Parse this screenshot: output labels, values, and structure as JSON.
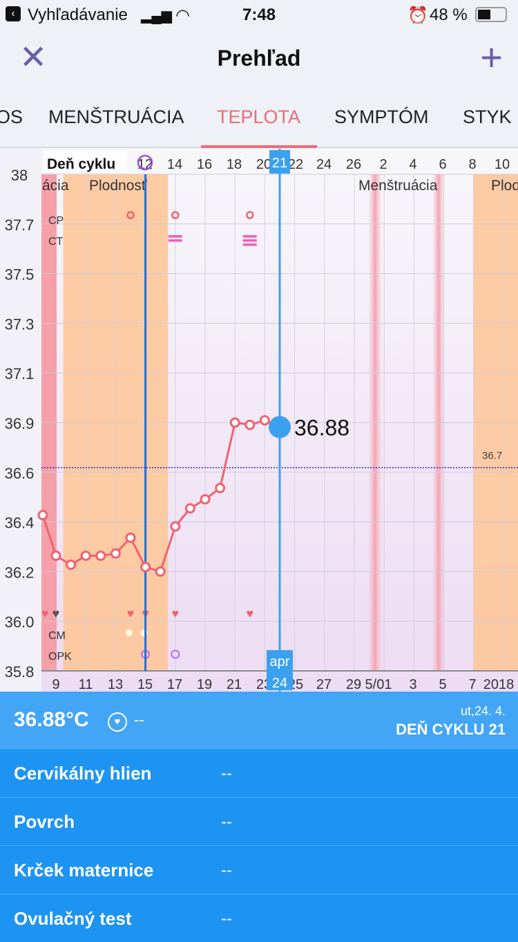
{
  "status_bar": {
    "back_app": "Vyhľadávanie",
    "time": "7:48",
    "battery": "48 %"
  },
  "nav": {
    "title": "Prehľad",
    "close_icon": "close-icon",
    "add_icon": "plus-icon"
  },
  "tabs": [
    {
      "label": "OS"
    },
    {
      "label": "MENŠTRUÁCIA"
    },
    {
      "label": "TEPLOTA",
      "active": true
    },
    {
      "label": "SYMPTÓM"
    },
    {
      "label": "STYK"
    }
  ],
  "chart_data": {
    "type": "line",
    "top_axis_label": "Deň cyklu",
    "top_ticks": [
      "12",
      "14",
      "16",
      "18",
      "20",
      "21",
      "22",
      "24",
      "26",
      "2",
      "4",
      "6",
      "8",
      "10"
    ],
    "bottom_ticks": [
      "9",
      "11",
      "13",
      "15",
      "17",
      "19",
      "21",
      "23",
      "24",
      "25",
      "27",
      "29",
      "5/01",
      "3",
      "5",
      "7",
      "2018"
    ],
    "selected_month": "apr",
    "selected_day": "24",
    "selected_cycle_day": "21",
    "y_ticks": [
      "38",
      "37.7",
      "37.5",
      "37.3",
      "37.1",
      "36.9",
      "36.6",
      "36.4",
      "36.2",
      "36.0",
      "35.8"
    ],
    "ylim": [
      35.8,
      38
    ],
    "row_labels": {
      "cp": "CP",
      "ct": "CT",
      "cm": "CM",
      "opk": "OPK"
    },
    "band_labels": {
      "menstruation_left": "ácia",
      "fertility": "Plodnosť",
      "menstruation": "Menštruácia",
      "fertility_right": "Plod"
    },
    "coverline": {
      "value": 36.7,
      "label": "36.7"
    },
    "selected_value_label": "36.88",
    "series": [
      {
        "x_april_day": [
          8,
          9,
          10,
          11,
          12,
          13,
          14,
          15,
          16,
          17,
          18,
          19,
          20,
          21,
          22,
          23,
          24
        ],
        "values": [
          36.49,
          36.31,
          36.27,
          36.31,
          36.31,
          36.32,
          36.39,
          36.26,
          36.24,
          36.44,
          36.52,
          36.56,
          36.61,
          36.9,
          36.89,
          36.91,
          36.88
        ]
      }
    ],
    "markers": {
      "cp": [
        14,
        17,
        22
      ],
      "ct": [
        17,
        22
      ],
      "sex": [
        8,
        9,
        14,
        15,
        17,
        22
      ],
      "cm": [
        14,
        15
      ],
      "opk": [
        15,
        17
      ]
    },
    "colors": {
      "line": "#f0626f",
      "menstruation": "#f5a0a8",
      "fertility": "#fdc79a",
      "selected": "#3ba1ee",
      "ovulation": "#1e6fd9",
      "coverline": "#2222cc"
    }
  },
  "summary": {
    "temperature": "36.88°C",
    "sex": "--",
    "date": "ut,24. 4.",
    "cycle_day": "DEŇ CYKLU 21"
  },
  "details": [
    {
      "label": "Cervikálny hlien",
      "value": "--"
    },
    {
      "label": "Povrch",
      "value": "--"
    },
    {
      "label": "Krček maternice",
      "value": "--"
    },
    {
      "label": "Ovulačný test",
      "value": "--"
    }
  ]
}
